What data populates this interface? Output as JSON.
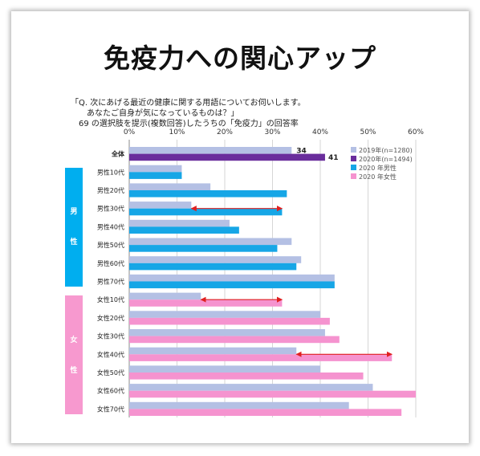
{
  "title": "免疫力への関心アップ",
  "question": "「Q. 次にあげる最近の健康に関する用語についてお伺いします。\n　　あなたご自身が気になっているものは？」\n　69 の選択肢を提示(複数回答)したうちの「免疫力」の回答率",
  "group_labels": {
    "male": [
      "男",
      "性"
    ],
    "female": [
      "女",
      "性"
    ]
  },
  "colors": {
    "y2019": "#b4c0e4",
    "y2020": "#6a2d9c",
    "male2020": "#16a6e6",
    "female2020": "#f593cf",
    "male_block": "#00aeef",
    "female_block": "#f799cf",
    "arrow": "#e02020"
  },
  "chart_data": {
    "type": "bar",
    "orientation": "horizontal",
    "xlim": [
      0,
      60
    ],
    "xticks": [
      "0%",
      "10%",
      "20%",
      "30%",
      "40%",
      "50%",
      "60%"
    ],
    "categories": [
      "全体",
      "男性10代",
      "男性20代",
      "男性30代",
      "男性40代",
      "男性50代",
      "男性60代",
      "男性70代",
      "女性10代",
      "女性20代",
      "女性30代",
      "女性40代",
      "女性50代",
      "女性60代",
      "女性70代"
    ],
    "series": [
      {
        "name": "2019年(n=1280)",
        "values": [
          34,
          11,
          17,
          13,
          21,
          34,
          36,
          43,
          15,
          40,
          41,
          35,
          40,
          51,
          46
        ]
      },
      {
        "name": "2020年(n=1494)",
        "values": [
          41,
          null,
          null,
          null,
          null,
          null,
          null,
          null,
          null,
          null,
          null,
          null,
          null,
          null,
          null
        ]
      },
      {
        "name": "2020 年男性",
        "values": [
          null,
          11,
          33,
          32,
          23,
          31,
          35,
          43,
          null,
          null,
          null,
          null,
          null,
          null,
          null
        ]
      },
      {
        "name": "2020 年女性",
        "values": [
          null,
          null,
          null,
          null,
          null,
          null,
          null,
          null,
          32,
          42,
          44,
          55,
          49,
          60,
          57
        ]
      }
    ],
    "data_labels": {
      "2019": "34",
      "2020": "41"
    },
    "legend_position": "top-right",
    "annotations": [
      {
        "category": "男性30代",
        "from": 13,
        "to": 32
      },
      {
        "category": "女性10代",
        "from": 15,
        "to": 32
      },
      {
        "category": "女性40代",
        "from": 35,
        "to": 55
      }
    ]
  }
}
